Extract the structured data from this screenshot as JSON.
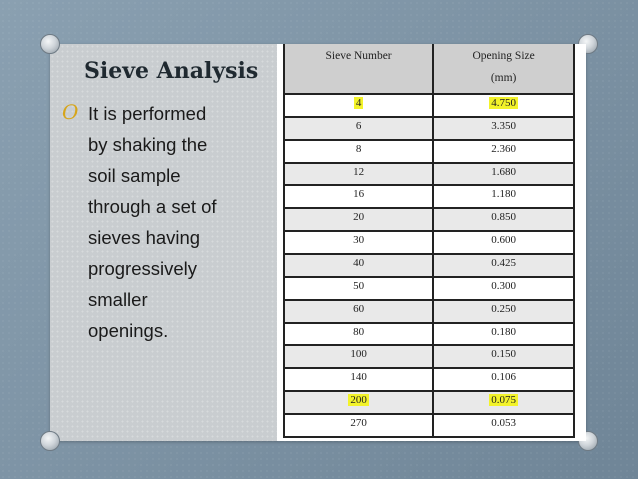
{
  "slide": {
    "title": "Sieve Analysis",
    "bullet_marker": "O",
    "bullet_lines": [
      "It is performed",
      "by shaking the",
      "soil sample",
      "through a set of",
      "sieves having",
      "progressively",
      "smaller",
      "openings."
    ]
  },
  "table": {
    "col1_header": "Sieve Number",
    "col2_header": "Opening Size",
    "col2_unit": "(mm)",
    "highlight_color": "#f3f32a",
    "rows": [
      {
        "sieve": "4",
        "opening": "4.750",
        "highlighted": true
      },
      {
        "sieve": "6",
        "opening": "3.350",
        "highlighted": false
      },
      {
        "sieve": "8",
        "opening": "2.360",
        "highlighted": false
      },
      {
        "sieve": "12",
        "opening": "1.680",
        "highlighted": false
      },
      {
        "sieve": "16",
        "opening": "1.180",
        "highlighted": false
      },
      {
        "sieve": "20",
        "opening": "0.850",
        "highlighted": false
      },
      {
        "sieve": "30",
        "opening": "0.600",
        "highlighted": false
      },
      {
        "sieve": "40",
        "opening": "0.425",
        "highlighted": false
      },
      {
        "sieve": "50",
        "opening": "0.300",
        "highlighted": false
      },
      {
        "sieve": "60",
        "opening": "0.250",
        "highlighted": false
      },
      {
        "sieve": "80",
        "opening": "0.180",
        "highlighted": false
      },
      {
        "sieve": "100",
        "opening": "0.150",
        "highlighted": false
      },
      {
        "sieve": "140",
        "opening": "0.106",
        "highlighted": false
      },
      {
        "sieve": "200",
        "opening": "0.075",
        "highlighted": true
      },
      {
        "sieve": "270",
        "opening": "0.053",
        "highlighted": false
      }
    ]
  }
}
